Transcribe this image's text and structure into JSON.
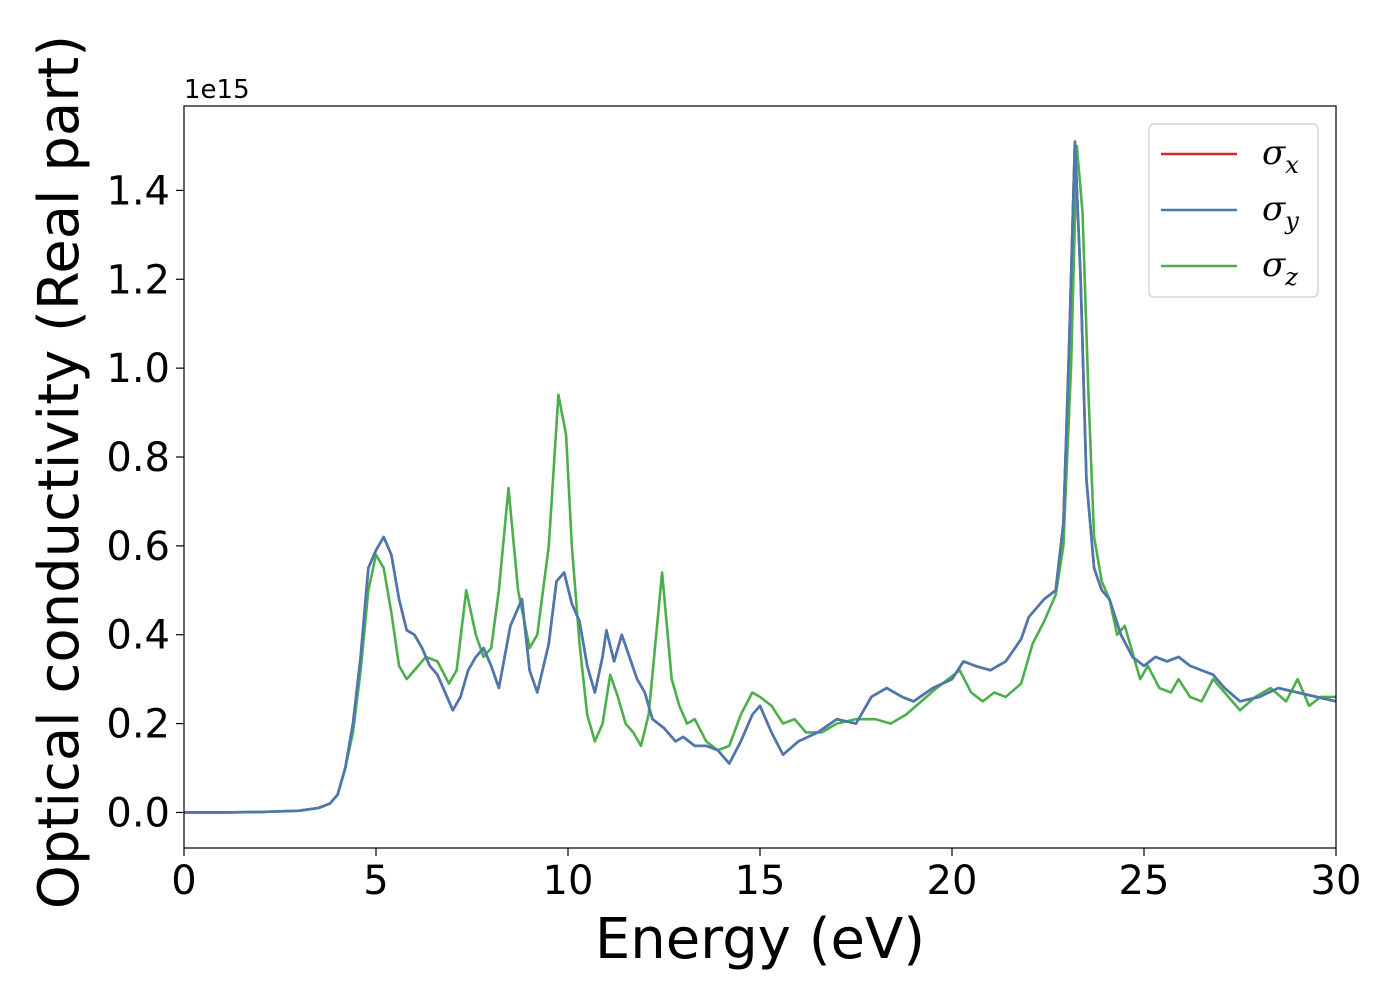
{
  "chart_data": {
    "type": "line",
    "title": "",
    "xlabel": "Energy (eV)",
    "ylabel": "Optical conductivity (Real part)",
    "y_offset_label": "1e15",
    "xlim": [
      0,
      30
    ],
    "ylim": [
      -0.08,
      1.59
    ],
    "xticks": [
      0,
      5,
      10,
      15,
      20,
      25,
      30
    ],
    "xtick_labels": [
      "0",
      "5",
      "10",
      "15",
      "20",
      "25",
      "30"
    ],
    "yticks": [
      0.0,
      0.2,
      0.4,
      0.6,
      0.8,
      1.0,
      1.2,
      1.4
    ],
    "ytick_labels": [
      "0.0",
      "0.2",
      "0.4",
      "0.6",
      "0.8",
      "1.0",
      "1.2",
      "1.4"
    ],
    "grid": false,
    "legend": "top-right",
    "series": [
      {
        "name": "σx",
        "symbol": "σ",
        "sub": "x",
        "color": "#d62728",
        "x": [
          0,
          1,
          2,
          3,
          3.5,
          3.8,
          4.0,
          4.2,
          4.4,
          4.6,
          4.8,
          5.0,
          5.2,
          5.4,
          5.6,
          5.8,
          6.0,
          6.2,
          6.4,
          6.6,
          6.8,
          7.0,
          7.2,
          7.4,
          7.6,
          7.8,
          8.0,
          8.2,
          8.5,
          8.8,
          9.0,
          9.2,
          9.5,
          9.7,
          9.9,
          10.1,
          10.3,
          10.5,
          10.7,
          10.9,
          11.0,
          11.2,
          11.4,
          11.6,
          11.8,
          12.0,
          12.2,
          12.5,
          12.8,
          13.0,
          13.3,
          13.6,
          13.9,
          14.2,
          14.5,
          14.8,
          15.0,
          15.3,
          15.6,
          16.0,
          16.5,
          17.0,
          17.5,
          17.9,
          18.3,
          18.7,
          19.0,
          19.5,
          20.0,
          20.3,
          20.6,
          21.0,
          21.4,
          21.8,
          22.0,
          22.4,
          22.7,
          22.9,
          23.05,
          23.2,
          23.35,
          23.5,
          23.7,
          23.9,
          24.1,
          24.4,
          24.7,
          25.0,
          25.3,
          25.6,
          25.9,
          26.2,
          26.5,
          26.8,
          27.1,
          27.5,
          28.0,
          28.5,
          29.0,
          29.5,
          30.0
        ],
        "y": [
          0.0,
          0.0,
          0.001,
          0.004,
          0.01,
          0.02,
          0.04,
          0.1,
          0.2,
          0.35,
          0.55,
          0.59,
          0.62,
          0.58,
          0.48,
          0.41,
          0.4,
          0.37,
          0.33,
          0.31,
          0.27,
          0.23,
          0.26,
          0.32,
          0.35,
          0.37,
          0.33,
          0.28,
          0.42,
          0.48,
          0.32,
          0.27,
          0.38,
          0.52,
          0.54,
          0.47,
          0.43,
          0.33,
          0.27,
          0.35,
          0.41,
          0.34,
          0.4,
          0.35,
          0.3,
          0.27,
          0.21,
          0.19,
          0.16,
          0.17,
          0.15,
          0.15,
          0.14,
          0.11,
          0.16,
          0.22,
          0.24,
          0.18,
          0.13,
          0.16,
          0.18,
          0.21,
          0.2,
          0.26,
          0.28,
          0.26,
          0.25,
          0.28,
          0.3,
          0.34,
          0.33,
          0.32,
          0.34,
          0.39,
          0.44,
          0.48,
          0.5,
          0.65,
          1.05,
          1.51,
          1.2,
          0.75,
          0.55,
          0.5,
          0.48,
          0.4,
          0.35,
          0.33,
          0.35,
          0.34,
          0.35,
          0.33,
          0.32,
          0.31,
          0.28,
          0.25,
          0.26,
          0.28,
          0.27,
          0.26,
          0.25
        ]
      },
      {
        "name": "σy",
        "symbol": "σ",
        "sub": "y",
        "color": "#4a78b0",
        "x": [
          0,
          1,
          2,
          3,
          3.5,
          3.8,
          4.0,
          4.2,
          4.4,
          4.6,
          4.8,
          5.0,
          5.2,
          5.4,
          5.6,
          5.8,
          6.0,
          6.2,
          6.4,
          6.6,
          6.8,
          7.0,
          7.2,
          7.4,
          7.6,
          7.8,
          8.0,
          8.2,
          8.5,
          8.8,
          9.0,
          9.2,
          9.5,
          9.7,
          9.9,
          10.1,
          10.3,
          10.5,
          10.7,
          10.9,
          11.0,
          11.2,
          11.4,
          11.6,
          11.8,
          12.0,
          12.2,
          12.5,
          12.8,
          13.0,
          13.3,
          13.6,
          13.9,
          14.2,
          14.5,
          14.8,
          15.0,
          15.3,
          15.6,
          16.0,
          16.5,
          17.0,
          17.5,
          17.9,
          18.3,
          18.7,
          19.0,
          19.5,
          20.0,
          20.3,
          20.6,
          21.0,
          21.4,
          21.8,
          22.0,
          22.4,
          22.7,
          22.9,
          23.05,
          23.2,
          23.35,
          23.5,
          23.7,
          23.9,
          24.1,
          24.4,
          24.7,
          25.0,
          25.3,
          25.6,
          25.9,
          26.2,
          26.5,
          26.8,
          27.1,
          27.5,
          28.0,
          28.5,
          29.0,
          29.5,
          30.0
        ],
        "y": [
          0.0,
          0.0,
          0.001,
          0.004,
          0.01,
          0.02,
          0.04,
          0.1,
          0.2,
          0.35,
          0.55,
          0.59,
          0.62,
          0.58,
          0.48,
          0.41,
          0.4,
          0.37,
          0.33,
          0.31,
          0.27,
          0.23,
          0.26,
          0.32,
          0.35,
          0.37,
          0.33,
          0.28,
          0.42,
          0.48,
          0.32,
          0.27,
          0.38,
          0.52,
          0.54,
          0.47,
          0.43,
          0.33,
          0.27,
          0.35,
          0.41,
          0.34,
          0.4,
          0.35,
          0.3,
          0.27,
          0.21,
          0.19,
          0.16,
          0.17,
          0.15,
          0.15,
          0.14,
          0.11,
          0.16,
          0.22,
          0.24,
          0.18,
          0.13,
          0.16,
          0.18,
          0.21,
          0.2,
          0.26,
          0.28,
          0.26,
          0.25,
          0.28,
          0.3,
          0.34,
          0.33,
          0.32,
          0.34,
          0.39,
          0.44,
          0.48,
          0.5,
          0.65,
          1.05,
          1.51,
          1.2,
          0.75,
          0.55,
          0.5,
          0.48,
          0.4,
          0.35,
          0.33,
          0.35,
          0.34,
          0.35,
          0.33,
          0.32,
          0.31,
          0.28,
          0.25,
          0.26,
          0.28,
          0.27,
          0.26,
          0.25
        ]
      },
      {
        "name": "σz",
        "symbol": "σ",
        "sub": "z",
        "color": "#4daf4a",
        "x": [
          0,
          1,
          2,
          3,
          3.5,
          3.8,
          4.0,
          4.2,
          4.4,
          4.6,
          4.8,
          5.0,
          5.2,
          5.4,
          5.6,
          5.8,
          6.0,
          6.3,
          6.6,
          6.9,
          7.1,
          7.35,
          7.6,
          7.8,
          8.0,
          8.2,
          8.45,
          8.7,
          9.0,
          9.2,
          9.5,
          9.75,
          9.95,
          10.1,
          10.3,
          10.5,
          10.7,
          10.9,
          11.1,
          11.3,
          11.5,
          11.7,
          11.9,
          12.1,
          12.45,
          12.7,
          12.9,
          13.1,
          13.3,
          13.6,
          13.9,
          14.2,
          14.5,
          14.8,
          15.0,
          15.3,
          15.6,
          15.9,
          16.2,
          16.6,
          17.0,
          17.5,
          18.0,
          18.4,
          18.8,
          19.2,
          19.6,
          19.9,
          20.2,
          20.5,
          20.8,
          21.1,
          21.4,
          21.8,
          22.1,
          22.4,
          22.7,
          22.9,
          23.1,
          23.25,
          23.4,
          23.55,
          23.7,
          23.9,
          24.1,
          24.3,
          24.5,
          24.7,
          24.9,
          25.1,
          25.4,
          25.7,
          25.9,
          26.2,
          26.5,
          26.8,
          27.1,
          27.5,
          27.9,
          28.3,
          28.7,
          29.0,
          29.3,
          29.6,
          30.0
        ],
        "y": [
          0.0,
          0.0,
          0.001,
          0.004,
          0.01,
          0.02,
          0.04,
          0.1,
          0.18,
          0.32,
          0.5,
          0.58,
          0.55,
          0.45,
          0.33,
          0.3,
          0.32,
          0.35,
          0.34,
          0.29,
          0.32,
          0.5,
          0.4,
          0.35,
          0.37,
          0.5,
          0.73,
          0.5,
          0.37,
          0.4,
          0.6,
          0.94,
          0.85,
          0.6,
          0.38,
          0.22,
          0.16,
          0.2,
          0.31,
          0.26,
          0.2,
          0.18,
          0.15,
          0.22,
          0.54,
          0.3,
          0.24,
          0.2,
          0.21,
          0.16,
          0.14,
          0.15,
          0.22,
          0.27,
          0.26,
          0.24,
          0.2,
          0.21,
          0.18,
          0.18,
          0.2,
          0.21,
          0.21,
          0.2,
          0.22,
          0.25,
          0.28,
          0.3,
          0.32,
          0.27,
          0.25,
          0.27,
          0.26,
          0.29,
          0.38,
          0.43,
          0.49,
          0.6,
          1.0,
          1.5,
          1.35,
          0.95,
          0.62,
          0.52,
          0.48,
          0.4,
          0.42,
          0.36,
          0.3,
          0.33,
          0.28,
          0.27,
          0.3,
          0.26,
          0.25,
          0.3,
          0.27,
          0.23,
          0.26,
          0.28,
          0.25,
          0.3,
          0.24,
          0.26,
          0.26
        ]
      }
    ]
  }
}
